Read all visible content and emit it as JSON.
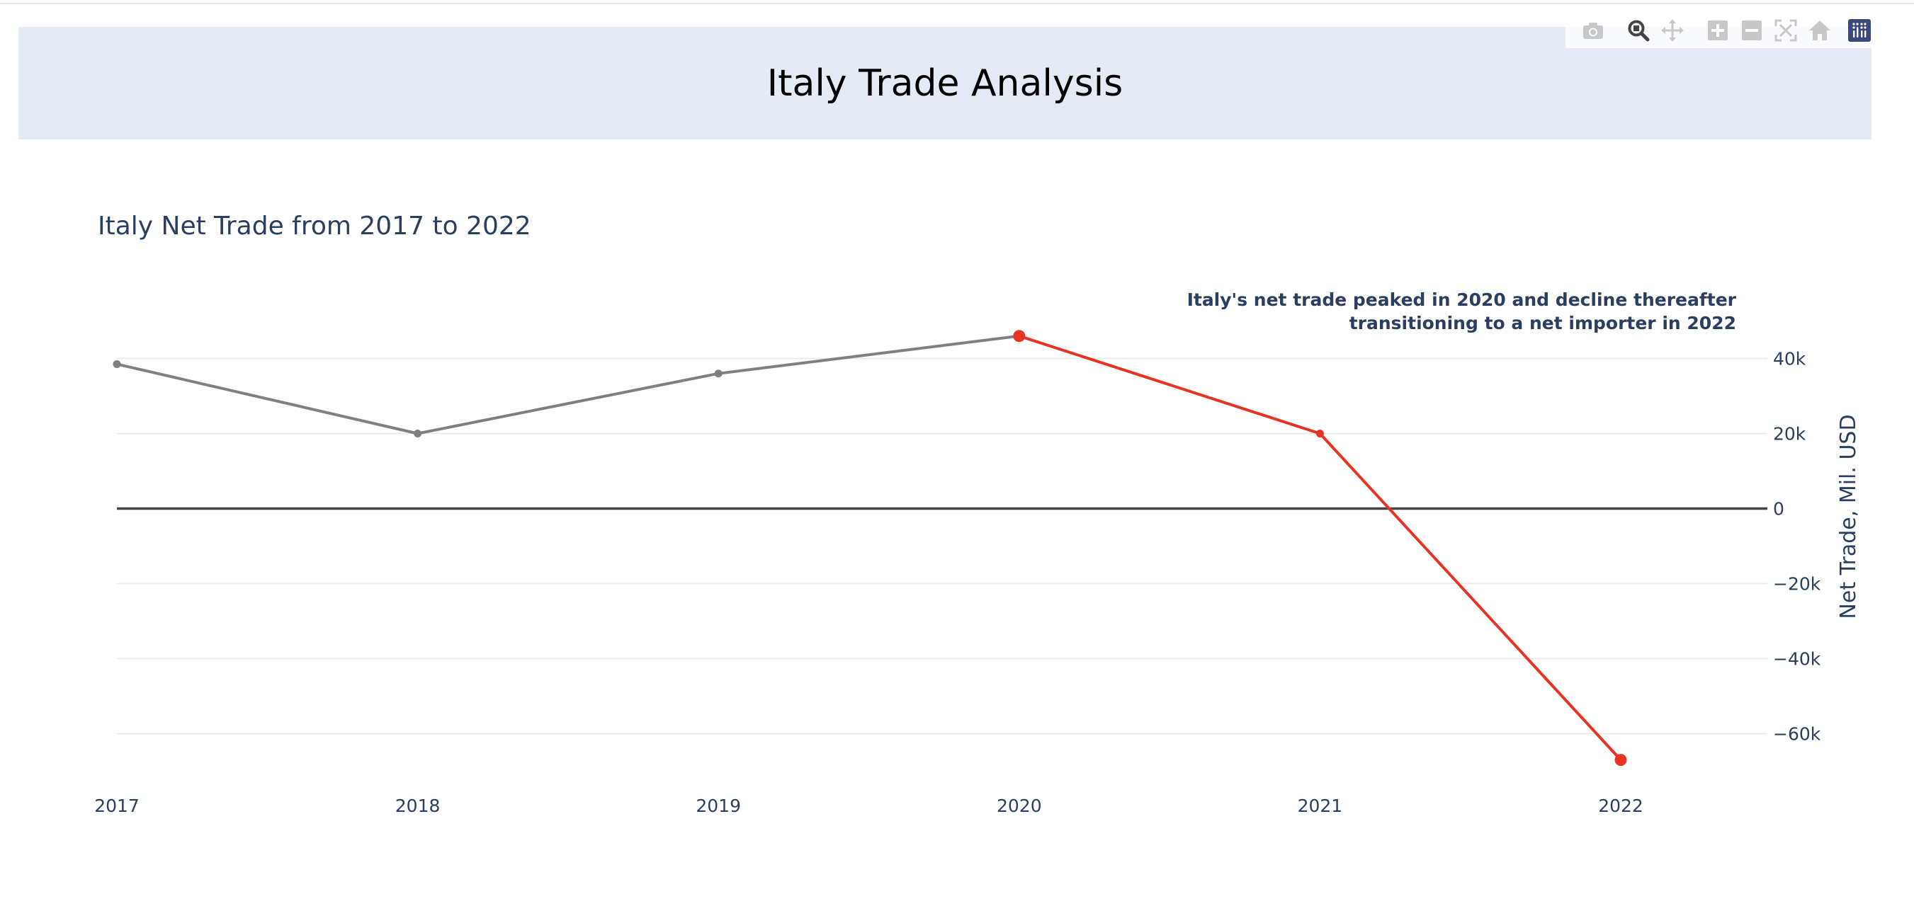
{
  "page": {
    "header_title": "Italy Trade Analysis"
  },
  "modebar": {
    "buttons": [
      {
        "name": "camera-icon",
        "label": "Download plot as a png"
      },
      {
        "name": "zoom-icon",
        "label": "Zoom"
      },
      {
        "name": "pan-icon",
        "label": "Pan"
      },
      {
        "name": "zoom-in-icon",
        "label": "Zoom in"
      },
      {
        "name": "zoom-out-icon",
        "label": "Zoom out"
      },
      {
        "name": "autoscale-icon",
        "label": "Autoscale"
      },
      {
        "name": "home-icon",
        "label": "Reset axes"
      },
      {
        "name": "plotly-logo-icon",
        "label": "Produced with Plotly"
      }
    ]
  },
  "colors": {
    "gray_line": "#808080",
    "red_line": "#e63323",
    "zero_line": "#444444",
    "grid": "#e8e8e8",
    "text": "#2a3f5f",
    "header_bg": "#e5ebf5"
  },
  "chart_data": {
    "type": "line",
    "title": "Italy Net Trade from 2017 to 2022",
    "xlabel": "",
    "ylabel": "Net Trade, Mil. USD",
    "x": [
      "2017",
      "2018",
      "2019",
      "2020",
      "2021",
      "2022"
    ],
    "xlim": [
      2017,
      2022.5
    ],
    "ylim": [
      -72000,
      52000
    ],
    "y_ticks": [
      40000,
      20000,
      0,
      -20000,
      -40000,
      -60000
    ],
    "y_tick_labels": [
      "40k",
      "20k",
      "0",
      "−20k",
      "−40k",
      "−60k"
    ],
    "y_axis_side": "right",
    "grid": true,
    "legend": "none",
    "series": [
      {
        "values": [
          38500,
          20000,
          36000,
          46000,
          null,
          null
        ],
        "color": "#808080"
      },
      {
        "values": [
          null,
          null,
          null,
          46000,
          20000,
          -67000
        ],
        "color": "#e63323"
      }
    ],
    "annotation": [
      "Italy's net trade peaked in 2020 and decline thereafter",
      "transitioning to a net importer in 2022"
    ]
  }
}
